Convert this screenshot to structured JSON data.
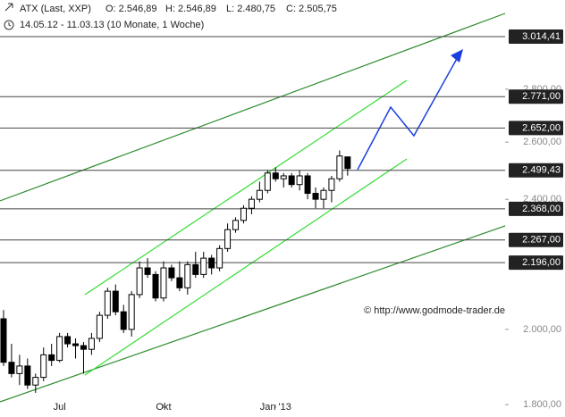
{
  "chart_data": {
    "type": "candlestick",
    "title": "ATX (Last, XXP)",
    "header_stats": [
      "O: 2.546,89",
      "H: 2.546,89",
      "L: 2.480,75",
      "C: 2.505,75"
    ],
    "subtitle": "14.05.12 - 11.03.13 (10 Monate, 1 Woche)",
    "watermark": "© http://www.godmode-trader.de",
    "categories": [
      null,
      null,
      null,
      null,
      null,
      null,
      null,
      "Jul",
      null,
      null,
      null,
      null,
      null,
      null,
      null,
      null,
      null,
      null,
      null,
      null,
      "Okt",
      null,
      null,
      null,
      null,
      null,
      null,
      null,
      null,
      null,
      null,
      null,
      null,
      null,
      "Jan '13",
      null,
      null,
      null,
      null,
      null,
      null,
      null,
      null,
      null
    ],
    "open": [
      2030,
      1910,
      1880,
      1900,
      1850,
      1870,
      1930,
      1915,
      1980,
      1960,
      1955,
      1945,
      1975,
      2040,
      2110,
      2050,
      2000,
      2100,
      2180,
      2160,
      2090,
      2180,
      2150,
      2120,
      2190,
      2160,
      2210,
      2180,
      2240,
      2300,
      2330,
      2370,
      2400,
      2430,
      2490,
      2470,
      2480,
      2450,
      2480,
      2420,
      2400,
      2430,
      2470,
      2546.89
    ],
    "high": [
      2055,
      1960,
      1930,
      1920,
      1880,
      1950,
      1960,
      1990,
      1990,
      1975,
      1965,
      1990,
      2050,
      2120,
      2130,
      2070,
      2110,
      2200,
      2210,
      2170,
      2200,
      2190,
      2200,
      2200,
      2230,
      2230,
      2220,
      2250,
      2320,
      2340,
      2380,
      2410,
      2460,
      2500,
      2510,
      2490,
      2490,
      2500,
      2490,
      2440,
      2440,
      2480,
      2570,
      2546.89
    ],
    "low": [
      1900,
      1870,
      1850,
      1840,
      1830,
      1860,
      1900,
      1910,
      1950,
      1920,
      1880,
      1930,
      1965,
      2030,
      2040,
      1990,
      1980,
      2090,
      2150,
      2080,
      2080,
      2140,
      2110,
      2100,
      2150,
      2150,
      2160,
      2170,
      2230,
      2290,
      2320,
      2350,
      2390,
      2420,
      2460,
      2440,
      2440,
      2430,
      2400,
      2370,
      2370,
      2390,
      2460,
      2480.75
    ],
    "close": [
      1910,
      1880,
      1900,
      1850,
      1870,
      1930,
      1915,
      1980,
      1960,
      1955,
      1945,
      1975,
      2040,
      2110,
      2050,
      2000,
      2100,
      2180,
      2160,
      2090,
      2180,
      2150,
      2120,
      2190,
      2160,
      2210,
      2180,
      2240,
      2300,
      2330,
      2370,
      2400,
      2430,
      2490,
      2470,
      2480,
      2450,
      2480,
      2420,
      2400,
      2430,
      2470,
      2550,
      2505.75
    ],
    "up_color": "#ffffff",
    "down_color": "#000000",
    "yscale": "log",
    "ylim": [
      1769,
      3173
    ],
    "yticks": [
      {
        "value": 1800,
        "label": "1.800,00"
      },
      {
        "value": 2000,
        "label": "2.000,00"
      },
      {
        "value": 2400,
        "label": "2.400,00"
      },
      {
        "value": 2600,
        "label": "2.600,00"
      },
      {
        "value": 2800,
        "label": "2.800,00"
      }
    ],
    "levels": [
      {
        "value": 3014.41,
        "label": "3.014,41"
      },
      {
        "value": 2771.0,
        "label": "2.771,00"
      },
      {
        "value": 2652.0,
        "label": "2.652,00"
      },
      {
        "value": 2499.43,
        "label": "2.499,43"
      },
      {
        "value": 2368.0,
        "label": "2.368,00"
      },
      {
        "value": 2267.0,
        "label": "2.267,00"
      },
      {
        "value": 2196.0,
        "label": "2.196,00"
      }
    ]
  }
}
